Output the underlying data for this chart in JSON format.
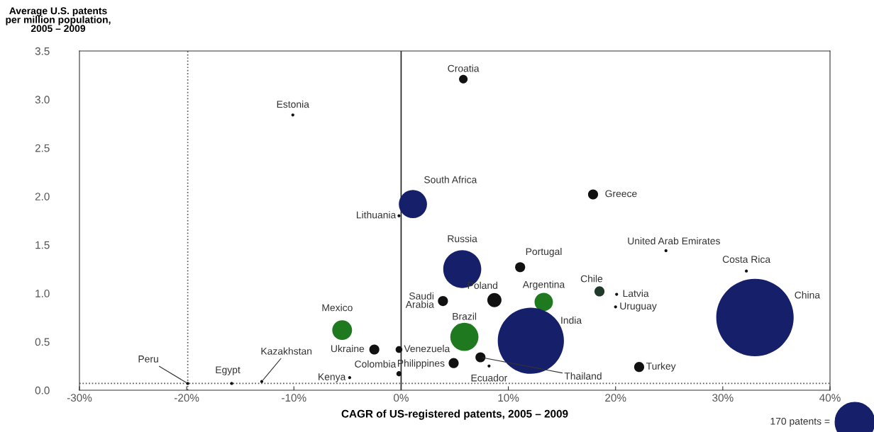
{
  "chart_data": {
    "type": "bubble",
    "ylabel": "Average U.S. patents\nper million population,\n2005 – 2009",
    "xlabel": "CAGR of US-registered patents, 2005 – 2009",
    "x": [
      5.8,
      -10.1,
      1.1,
      -0.2,
      17.9,
      24.7,
      32.2,
      5.7,
      11.1,
      18.5,
      20.1,
      20.0,
      3.9,
      8.7,
      13.3,
      33.0,
      -5.5,
      5.9,
      12.1,
      -2.5,
      -0.2,
      4.9,
      7.4,
      8.2,
      22.2,
      -0.2,
      -4.8,
      -13.0,
      -15.8,
      -19.9
    ],
    "values": [
      3.21,
      2.84,
      1.92,
      1.8,
      2.02,
      1.44,
      1.23,
      1.25,
      1.27,
      1.02,
      0.99,
      0.86,
      0.92,
      0.93,
      0.91,
      0.75,
      0.62,
      0.55,
      0.51,
      0.42,
      0.42,
      0.28,
      0.34,
      0.25,
      0.24,
      0.17,
      0.13,
      0.09,
      0.07,
      0.07
    ],
    "sizes": [
      8,
      1,
      87,
      1,
      11,
      1,
      1,
      158,
      11,
      11,
      1,
      1,
      11,
      22,
      37,
      656,
      43,
      87,
      479,
      11,
      5,
      11,
      11,
      1,
      11,
      3,
      1,
      1,
      1,
      1
    ],
    "colors": [
      "#111111",
      "#111111",
      "#16206a",
      "#111111",
      "#111111",
      "#111111",
      "#111111",
      "#16206a",
      "#111111",
      "#1f3a2a",
      "#111111",
      "#111111",
      "#111111",
      "#111111",
      "#1f7a1f",
      "#16206a",
      "#1f7a1f",
      "#1f7a1f",
      "#16206a",
      "#111111",
      "#111111",
      "#111111",
      "#111111",
      "#111111",
      "#111111",
      "#111111",
      "#111111",
      "#111111",
      "#111111",
      "#111111"
    ],
    "size_legend": [
      {
        "value": 170,
        "label": "170 patents ="
      }
    ],
    "annotations": [
      {
        "text": "Croatia",
        "x": 5.8,
        "y": 3.21
      },
      {
        "text": "Estonia",
        "x": -10.1,
        "y": 2.84
      },
      {
        "text": "South Africa",
        "x": 1.1,
        "y": 1.92
      },
      {
        "text": "Lithuania",
        "x": -0.2,
        "y": 1.8
      },
      {
        "text": "Greece",
        "x": 17.9,
        "y": 2.02
      },
      {
        "text": "United Arab Emirates",
        "x": 24.7,
        "y": 1.44
      },
      {
        "text": "Costa Rica",
        "x": 32.2,
        "y": 1.23
      },
      {
        "text": "Russia",
        "x": 5.7,
        "y": 1.25
      },
      {
        "text": "Portugal",
        "x": 11.1,
        "y": 1.27
      },
      {
        "text": "Chile",
        "x": 18.5,
        "y": 1.02
      },
      {
        "text": "Latvia",
        "x": 20.1,
        "y": 0.99
      },
      {
        "text": "Uruguay",
        "x": 20.0,
        "y": 0.86
      },
      {
        "text": "Saudi\nArabia",
        "x": 3.9,
        "y": 0.92
      },
      {
        "text": "Poland",
        "x": 8.7,
        "y": 0.93
      },
      {
        "text": "Argentina",
        "x": 13.3,
        "y": 0.91
      },
      "China",
      {
        "text": "Mexico",
        "x": -5.5,
        "y": 0.62
      },
      {
        "text": "Brazil",
        "x": 5.9,
        "y": 0.55
      },
      "India",
      {
        "text": "Ukraine",
        "x": -2.5,
        "y": 0.42
      },
      {
        "text": "Venezuela",
        "x": -0.2,
        "y": 0.42
      },
      {
        "text": "Philippines",
        "x": 4.9,
        "y": 0.28
      },
      {
        "text": "Thailand",
        "x": 7.4,
        "y": 0.34
      },
      {
        "text": "Ecuador",
        "x": 8.2,
        "y": 0.25
      },
      {
        "text": "Turkey",
        "x": 22.2,
        "y": 0.24
      },
      {
        "text": "Colombia",
        "x": -0.2,
        "y": 0.17
      },
      {
        "text": "Kenya",
        "x": -4.8,
        "y": 0.13
      },
      {
        "text": "Kazakhstan",
        "x": -13.0,
        "y": 0.09
      },
      {
        "text": "Egypt",
        "x": -15.8,
        "y": 0.07
      },
      {
        "text": "Peru",
        "x": -19.9,
        "y": 0.07
      }
    ],
    "ref_lines": [
      {
        "axis": "x",
        "value": -19.9,
        "line_style": "dotted",
        "color": "#555555"
      },
      {
        "axis": "y",
        "value": 0.07,
        "line_style": "dotted",
        "color": "#555555"
      },
      {
        "axis": "x",
        "value": 0,
        "line_style": "solid",
        "color": "#222222"
      }
    ],
    "xlim": [
      -30,
      40
    ],
    "xticks": [
      {
        "value": -30,
        "label": "-30%"
      },
      {
        "value": -20,
        "label": "-20%"
      },
      {
        "value": -10,
        "label": "-10%"
      },
      {
        "value": 0,
        "label": "0%"
      },
      {
        "value": 10,
        "label": "10%"
      },
      {
        "value": 20,
        "label": "20%"
      },
      {
        "value": 30,
        "label": "30%"
      },
      {
        "value": 40,
        "label": "40%"
      }
    ],
    "ylim": [
      0,
      3.5
    ],
    "yticks": [
      {
        "value": 0,
        "label": "0.0"
      },
      {
        "value": 0.5,
        "label": "0.5"
      },
      {
        "value": 1,
        "label": "1.0"
      },
      {
        "value": 1.5,
        "label": "1.5"
      },
      {
        "value": 2,
        "label": "2.0"
      },
      {
        "value": 2.5,
        "label": "2.5"
      },
      {
        "value": 3,
        "label": "3.0"
      },
      {
        "value": 3.5,
        "label": "3.5"
      }
    ],
    "grid": false
  }
}
